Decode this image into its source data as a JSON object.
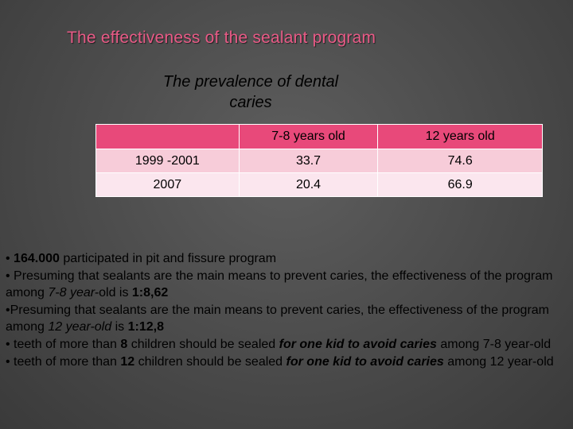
{
  "title": "The effectiveness of the sealant program",
  "subtitle_line1": "The prevalence of dental",
  "subtitle_line2": "caries",
  "colors": {
    "title": "#e85a86",
    "table_header": "#e8497a",
    "row_odd": "#f7ccd9",
    "row_even": "#fbe6ee"
  },
  "table": {
    "headers": [
      "",
      "7-8 years old",
      "12 years old"
    ],
    "rows": [
      [
        "1999 -2001",
        "33.7",
        "74.6"
      ],
      [
        "2007",
        "20.4",
        "66.9"
      ]
    ]
  },
  "bullets": {
    "b1": {
      "bullet": "• ",
      "bold1": "164.000",
      "text1": " participated in pit and fissure program"
    },
    "b2": {
      "text1": "• Presuming that sealants are the main means to prevent caries, the effectiveness of the program among ",
      "italic1": "7-8 year-",
      "text2": "old is ",
      "bold1": "1:8,62"
    },
    "b3": {
      "text1": "•Presuming that sealants are the main means to prevent caries, the effectiveness of the program among ",
      "italic1": "12 year-old",
      "text2": " is ",
      "bold1": "1:12,8"
    },
    "b4": {
      "text1": "• teeth of more than ",
      "bold1": "8",
      "text2": " children should be sealed ",
      "bolditalic1": "for one kid to avoid caries",
      "text3": " among 7-8 year-old"
    },
    "b5": {
      "text1": "• teeth of more than ",
      "bold1": "12",
      "text2": " children should be sealed ",
      "bolditalic1": "for one kid to avoid caries",
      "text3": " among 12 year-old"
    }
  }
}
